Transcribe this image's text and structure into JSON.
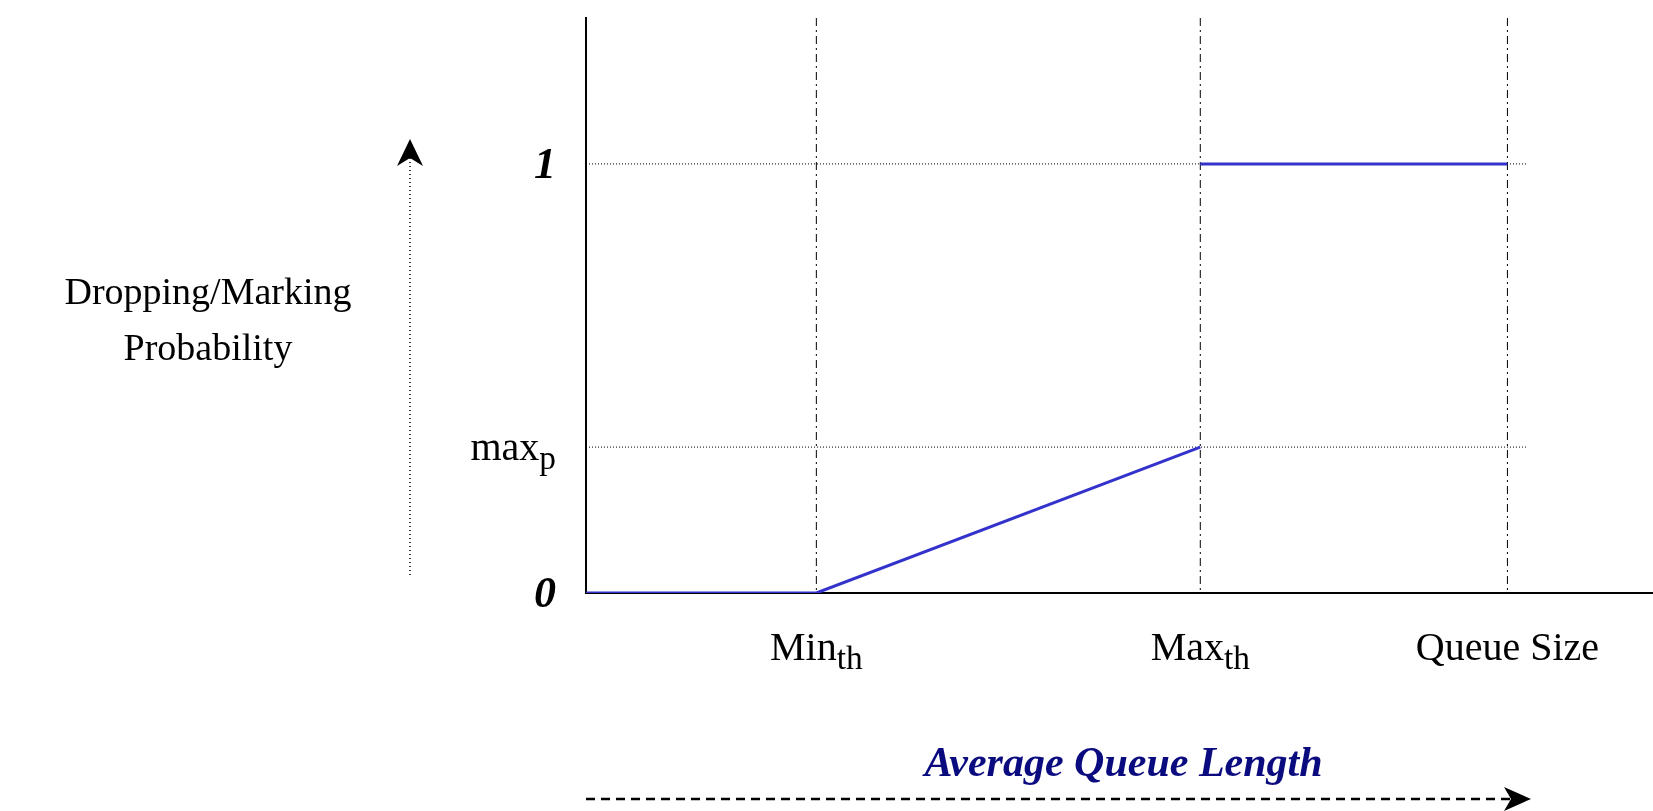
{
  "chart_data": {
    "type": "line",
    "xlabel": "Average Queue Length",
    "ylabel": "Dropping/Marking Probability",
    "categories": [
      null,
      null,
      null,
      "Min$_{th}$",
      null,
      null,
      null,
      null,
      "Max$_{th}$",
      null,
      null,
      null,
      "Queue Size",
      null,
      null
    ],
    "ylim": [
      0,
      1.34
    ],
    "yticks": [
      0,
      {
        "value": 0.34,
        "label": "max$_{p}$"
      },
      1
    ],
    "series": [
      {
        "color": "#3333cc",
        "values": [
          0,
          null,
          null,
          0,
          null,
          null,
          null,
          null,
          0.34,
          null,
          null,
          null,
          null,
          null,
          null
        ]
      },
      {
        "color": "#3333cc",
        "values": [
          null,
          null,
          null,
          null,
          null,
          null,
          null,
          null,
          1,
          null,
          null,
          null,
          1,
          null,
          null
        ]
      }
    ],
    "ref_lines": [
      {
        "axis": "x",
        "value": "Min$_{th}$",
        "label": null,
        "color": "#000000",
        "line_style": "dashed"
      },
      {
        "axis": "x",
        "value": "Max$_{th}$",
        "label": null,
        "color": "#000000",
        "line_style": "dashed"
      },
      {
        "axis": "x",
        "value": "Queue Size",
        "label": null,
        "color": "#000000",
        "line_style": "dashed"
      },
      {
        "axis": "y",
        "value": 1,
        "label": null,
        "color": "#000000",
        "line_style": "dotted"
      },
      {
        "axis": "y",
        "value": 0.34,
        "label": null,
        "color": "#000000",
        "line_style": "dotted"
      }
    ],
    "marker": "none",
    "line_style": "solid"
  }
}
